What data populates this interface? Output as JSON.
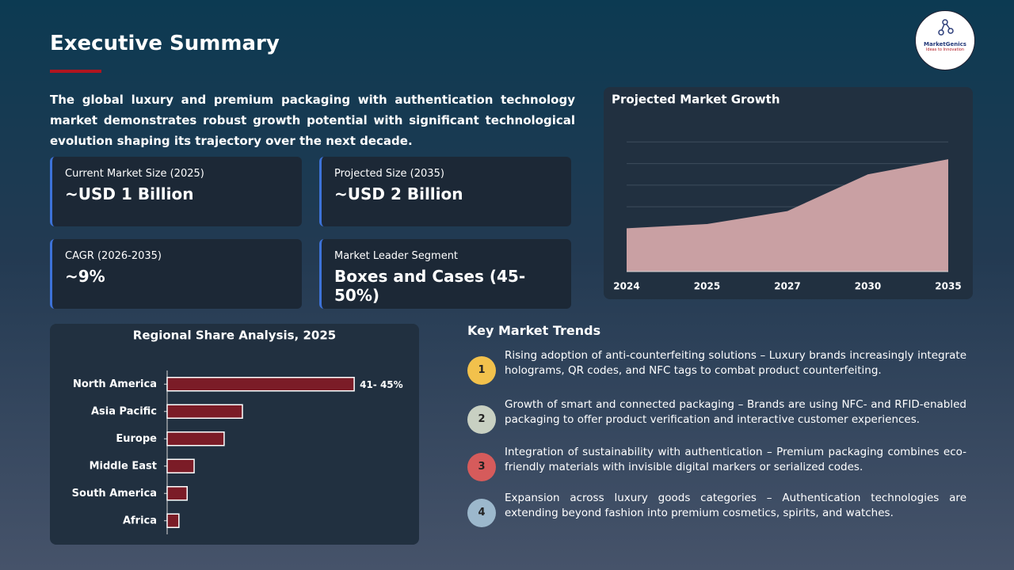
{
  "header": {
    "title": "Executive Summary",
    "logo": {
      "name": "MarketGenics",
      "tagline": "Ideas to Innovation"
    }
  },
  "intro": "The global luxury and premium packaging with authentication technology market demonstrates robust growth potential with significant technological evolution shaping its trajectory over the next decade.",
  "stats": [
    {
      "label": "Current Market Size (2025)",
      "value": "~USD 1 Billion"
    },
    {
      "label": "Projected Size (2035)",
      "value": "~USD 2 Billion"
    },
    {
      "label": "CAGR (2026-2035)",
      "value": "~9%"
    },
    {
      "label": "Market Leader Segment",
      "value": "Boxes and Cases (45-50%)"
    }
  ],
  "chart_data": [
    {
      "type": "area",
      "title": "Projected Market Growth",
      "categories": [
        "2024",
        "2025",
        "2027",
        "2030",
        "2035"
      ],
      "values": [
        2.0,
        2.2,
        2.8,
        4.5,
        5.2
      ],
      "color": "#c9a0a3",
      "ylim": [
        0,
        7
      ],
      "yticks": [
        3,
        4,
        5,
        6
      ],
      "grid": true
    },
    {
      "type": "bar",
      "orientation": "horizontal",
      "title": "Regional Share Analysis, 2025",
      "categories": [
        "North America",
        "Asia Pacific",
        "Europe",
        "Middle East",
        "South America",
        "Africa"
      ],
      "values": [
        43,
        17.3,
        13.1,
        6.2,
        4.6,
        2.7
      ],
      "value_labels": [
        "41- 45%",
        null,
        null,
        null,
        null,
        null
      ],
      "color": "#7b1c27",
      "xlim": [
        0,
        55
      ]
    }
  ],
  "trends": {
    "title": "Key Market Trends",
    "items": [
      {
        "number": "1",
        "text": "Rising adoption of anti-counterfeiting solutions – Luxury brands increasingly integrate holograms, QR codes, and NFC tags to combat product counterfeiting."
      },
      {
        "number": "2",
        "text": "Growth of smart and connected packaging – Brands are using NFC- and RFID-enabled packaging to offer product verification and interactive customer experiences."
      },
      {
        "number": "3",
        "text": "Integration of sustainability with authentication – Premium packaging combines eco-friendly materials with invisible digital markers or serialized codes."
      },
      {
        "number": "4",
        "text": "Expansion across luxury goods categories – Authentication technologies are extending beyond fashion into premium cosmetics, spirits, and watches."
      }
    ]
  }
}
